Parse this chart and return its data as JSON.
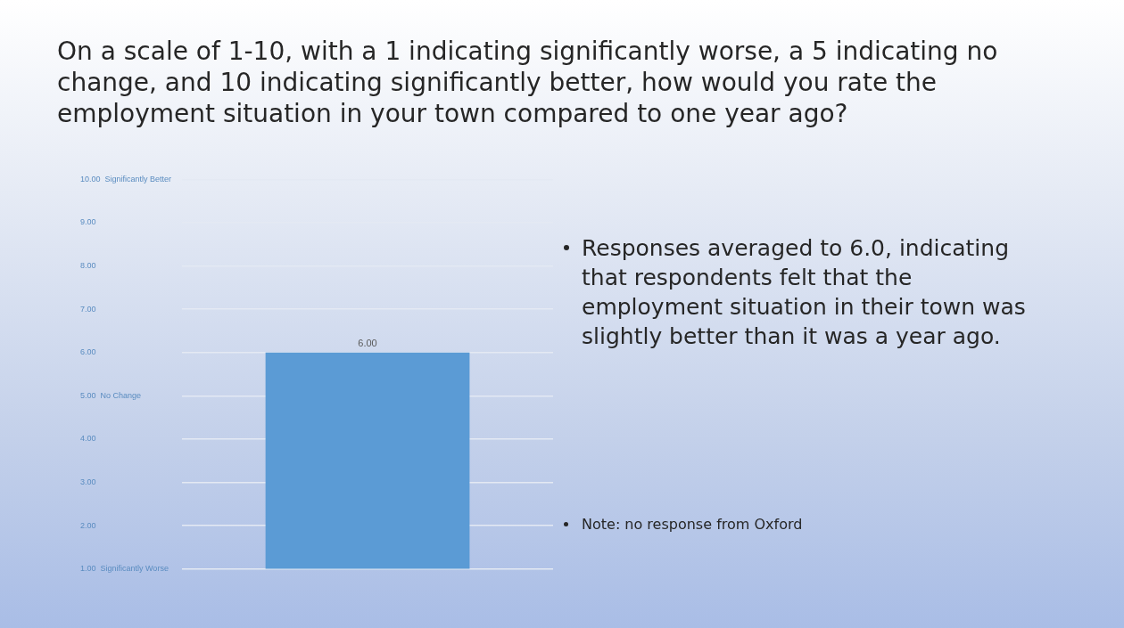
{
  "chart_data": {
    "type": "bar",
    "title": "On a scale of 1-10, with a 1 indicating significantly worse, a 5 indicating no change, and 10 indicating significantly better, how would you rate the employment situation in your town compared to one year ago?",
    "categories": [
      null
    ],
    "values": [
      6
    ],
    "value_labels": [
      "6.00"
    ],
    "color": "#5b9bd5",
    "ylim": [
      1,
      10
    ],
    "yticks": [
      {
        "value": 1,
        "label": "1.00  Significantly Worse"
      },
      {
        "value": 2,
        "label": "2.00"
      },
      {
        "value": 3,
        "label": "3.00"
      },
      {
        "value": 4,
        "label": "4.00"
      },
      {
        "value": 5,
        "label": "5.00  No Change"
      },
      {
        "value": 6,
        "label": "6.00"
      },
      {
        "value": 7,
        "label": "7.00"
      },
      {
        "value": 8,
        "label": "8.00"
      },
      {
        "value": 9,
        "label": "9.00"
      },
      {
        "value": 10,
        "label": "10.00  Significantly Better"
      }
    ],
    "grid": "y",
    "annotations": [
      "Responses averaged to 6.0, indicating that respondents felt that the employment situation in their town was slightly better than it was a year ago.",
      "Note: no response from Oxford"
    ]
  }
}
